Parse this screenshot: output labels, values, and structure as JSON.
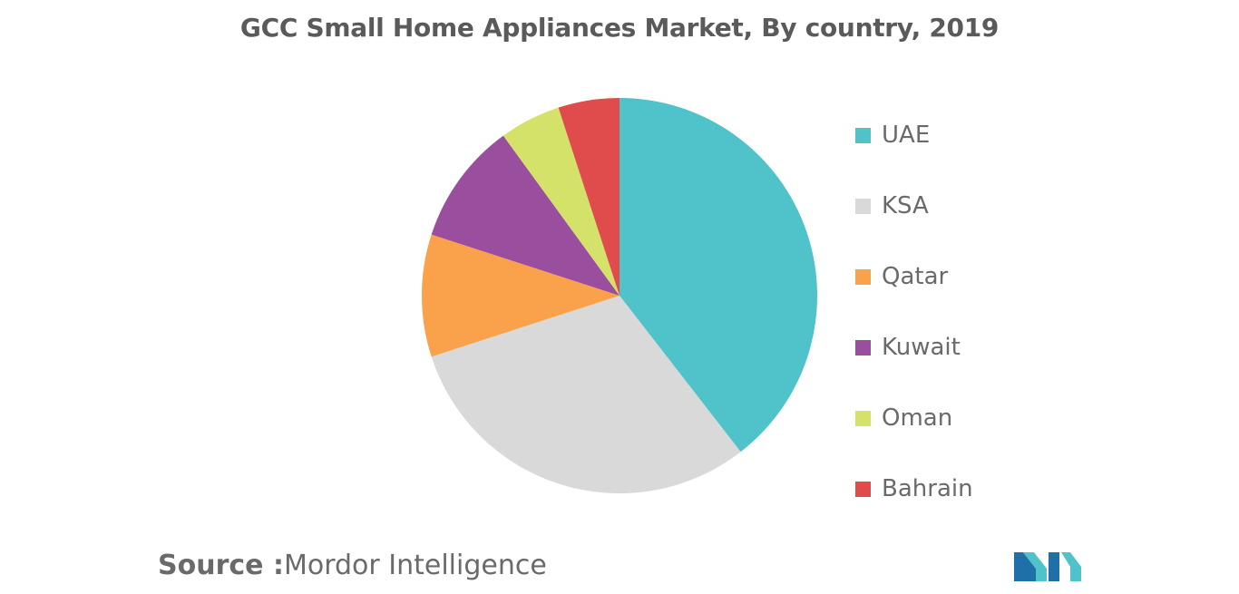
{
  "chart_data": {
    "type": "pie",
    "title": "GCC Small Home Appliances Market, By country, 2019",
    "categories": [
      "UAE",
      "KSA",
      "Qatar",
      "Kuwait",
      "Oman",
      "Bahrain"
    ],
    "values": [
      39.5,
      30.5,
      10,
      10,
      5,
      5
    ],
    "colors": [
      "#4fc3c9",
      "#d9d9d9",
      "#f9a14b",
      "#9a4f9e",
      "#d5e26a",
      "#e04c4b"
    ],
    "start_angle": "top, clockwise",
    "legend_position": "right"
  },
  "source": {
    "label": "Source :",
    "value": "Mordor Intelligence"
  },
  "logo": {
    "icon": "mordor-intelligence-logo-icon",
    "colors": [
      "#1f6fa8",
      "#4fc3c9"
    ]
  }
}
